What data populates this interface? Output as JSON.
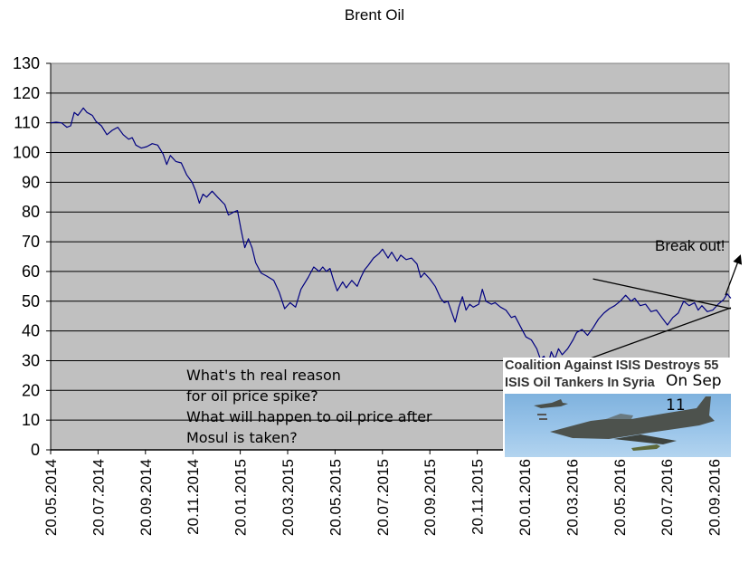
{
  "chart_data": {
    "type": "line",
    "title": "Brent Oil",
    "xlabel": "",
    "ylabel": "",
    "ylim": [
      0,
      130
    ],
    "yticks": [
      0,
      10,
      20,
      30,
      40,
      50,
      60,
      70,
      80,
      90,
      100,
      110,
      120,
      130
    ],
    "grid": true,
    "xticks": [
      "20.05.2014",
      "20.07.2014",
      "20.09.2014",
      "20.11.2014",
      "20.01.2015",
      "20.03.2015",
      "20.05.2015",
      "20.07.2015",
      "20.09.2015",
      "20.11.2015",
      "20.01.2016",
      "20.03.2016",
      "20.05.2016",
      "20.07.2016",
      "20.09.2016"
    ],
    "x_range_months": [
      0,
      29.5
    ],
    "series": [
      {
        "name": "Brent Oil",
        "color": "#000080",
        "points_month_value": [
          [
            0,
            110
          ],
          [
            0.3,
            110.2
          ],
          [
            0.6,
            110
          ],
          [
            0.9,
            108.5
          ],
          [
            1.1,
            109
          ],
          [
            1.3,
            113.5
          ],
          [
            1.5,
            112.5
          ],
          [
            1.8,
            115
          ],
          [
            2.0,
            113.5
          ],
          [
            2.3,
            112.5
          ],
          [
            2.5,
            110.5
          ],
          [
            2.8,
            109
          ],
          [
            3.1,
            106
          ],
          [
            3.4,
            107.5
          ],
          [
            3.7,
            108.5
          ],
          [
            4.0,
            106
          ],
          [
            4.3,
            104.5
          ],
          [
            4.5,
            105
          ],
          [
            4.7,
            102.5
          ],
          [
            5.0,
            101.5
          ],
          [
            5.3,
            102
          ],
          [
            5.6,
            103
          ],
          [
            5.9,
            102.5
          ],
          [
            6.2,
            99.5
          ],
          [
            6.4,
            96
          ],
          [
            6.6,
            99
          ],
          [
            6.9,
            97
          ],
          [
            7.2,
            96.5
          ],
          [
            7.5,
            92.5
          ],
          [
            7.8,
            90
          ],
          [
            8.0,
            87
          ],
          [
            8.2,
            83
          ],
          [
            8.4,
            86
          ],
          [
            8.6,
            85
          ],
          [
            8.9,
            87
          ],
          [
            9.2,
            85
          ],
          [
            9.6,
            82.5
          ],
          [
            9.8,
            79
          ],
          [
            10.1,
            80
          ],
          [
            10.3,
            80.5
          ],
          [
            10.5,
            74
          ],
          [
            10.7,
            68
          ],
          [
            10.9,
            71
          ],
          [
            11.1,
            68
          ],
          [
            11.3,
            63
          ],
          [
            11.6,
            59.5
          ],
          [
            11.9,
            58.5
          ],
          [
            12.3,
            57
          ],
          [
            12.6,
            53
          ],
          [
            12.9,
            47.5
          ],
          [
            13.2,
            49.5
          ],
          [
            13.5,
            48
          ],
          [
            13.8,
            54
          ],
          [
            14.2,
            58
          ],
          [
            14.5,
            61.5
          ],
          [
            14.8,
            60
          ],
          [
            15.0,
            61.5
          ],
          [
            15.2,
            60
          ],
          [
            15.4,
            61
          ],
          [
            15.6,
            57
          ],
          [
            15.8,
            53.5
          ],
          [
            16.1,
            56.5
          ],
          [
            16.3,
            54.5
          ],
          [
            16.6,
            57
          ],
          [
            16.9,
            55
          ],
          [
            17.1,
            58
          ],
          [
            17.3,
            60.5
          ],
          [
            17.5,
            62
          ],
          [
            17.8,
            64.5
          ],
          [
            18.1,
            66
          ],
          [
            18.3,
            67.5
          ],
          [
            18.6,
            64.5
          ],
          [
            18.8,
            66.5
          ],
          [
            19.1,
            63.5
          ],
          [
            19.3,
            65.5
          ],
          [
            19.6,
            64
          ],
          [
            19.9,
            64.5
          ],
          [
            20.2,
            62.5
          ],
          [
            20.4,
            58
          ],
          [
            20.6,
            59.5
          ],
          [
            20.9,
            57.5
          ],
          [
            21.2,
            55
          ],
          [
            21.5,
            51
          ],
          [
            21.7,
            49.5
          ],
          [
            21.9,
            50
          ],
          [
            22.1,
            46.5
          ],
          [
            22.3,
            43
          ],
          [
            22.5,
            48
          ],
          [
            22.7,
            51.5
          ],
          [
            22.9,
            47
          ],
          [
            23.1,
            49
          ],
          [
            23.3,
            48
          ],
          [
            23.6,
            49
          ],
          [
            23.8,
            54
          ],
          [
            24.0,
            50
          ],
          [
            24.3,
            49
          ],
          [
            24.5,
            49.5
          ],
          [
            24.8,
            48
          ],
          [
            25.1,
            47
          ],
          [
            25.4,
            44.5
          ],
          [
            25.6,
            45
          ],
          [
            25.9,
            41.5
          ],
          [
            26.2,
            38
          ],
          [
            26.5,
            37
          ],
          [
            26.8,
            34
          ],
          [
            27.0,
            30.5
          ],
          [
            27.2,
            31.5
          ],
          [
            27.4,
            28
          ],
          [
            27.6,
            33
          ],
          [
            27.8,
            30.5
          ],
          [
            28.0,
            34
          ],
          [
            28.2,
            32
          ],
          [
            28.5,
            34
          ],
          [
            28.8,
            37
          ],
          [
            29.0,
            39.5
          ],
          [
            29.3,
            40.5
          ],
          [
            29.6,
            38.5
          ],
          [
            29.9,
            41
          ],
          [
            30.2,
            44
          ],
          [
            30.5,
            46
          ],
          [
            30.8,
            47.5
          ],
          [
            31.1,
            48.5
          ],
          [
            31.4,
            50
          ],
          [
            31.7,
            52
          ],
          [
            32.0,
            50
          ],
          [
            32.2,
            51
          ],
          [
            32.5,
            48.5
          ],
          [
            32.8,
            49
          ],
          [
            33.1,
            46.5
          ],
          [
            33.4,
            47
          ],
          [
            33.7,
            44.5
          ],
          [
            34.0,
            42
          ],
          [
            34.3,
            44.5
          ],
          [
            34.6,
            46
          ],
          [
            34.9,
            50
          ],
          [
            35.2,
            48.5
          ],
          [
            35.5,
            49.5
          ],
          [
            35.7,
            47
          ],
          [
            35.9,
            48.5
          ],
          [
            36.2,
            46.5
          ],
          [
            36.5,
            47
          ],
          [
            36.8,
            49
          ],
          [
            37.1,
            50.5
          ],
          [
            37.3,
            52.5
          ],
          [
            37.5,
            51
          ]
        ]
      }
    ],
    "trendlines": [
      {
        "name": "upper-resistance",
        "from": [
          29.9,
          57.5
        ],
        "to": [
          37.5,
          47.5
        ]
      },
      {
        "name": "lower-support",
        "from": [
          29.4,
          30
        ],
        "to": [
          37.5,
          47.8
        ]
      }
    ],
    "annotations": [
      {
        "text": "Break out!",
        "arrow_from": [
          37.2,
          52
        ],
        "arrow_to": [
          37.5,
          65
        ]
      }
    ]
  },
  "note_lines": [
    "What's th real reason",
    "for oil price spike?",
    "What will happen to oil price after",
    "Mosul is taken?"
  ],
  "breakout_label": "Break out!",
  "news": {
    "headline_line1": "Coalition Against ISIS Destroys 55",
    "headline_line2": "ISIS Oil Tankers In Syria",
    "on_label": "On Sep",
    "date_label": "11",
    "image_subject": "fighter-jets-dropping-bombs"
  },
  "colors": {
    "plot_background": "#c0c0c0",
    "series_line": "#000080",
    "gridline": "#000000"
  }
}
